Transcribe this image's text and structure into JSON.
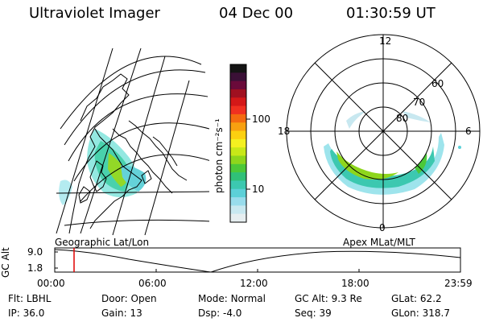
{
  "header": {
    "title": "Ultraviolet Imager",
    "date": "04 Dec 00",
    "time": "01:30:59 UT"
  },
  "colorbar": {
    "label": "photon cm⁻²s⁻¹",
    "ticks": [
      "100",
      "10"
    ],
    "colors": [
      "#141414",
      "#3a1036",
      "#6a0a3a",
      "#a01020",
      "#d41818",
      "#f03020",
      "#f46a10",
      "#f8a010",
      "#fcd010",
      "#f4f020",
      "#c8e818",
      "#8ed61c",
      "#4cc838",
      "#30c078",
      "#3cc8b0",
      "#5cd0d8",
      "#98dcec",
      "#c8e8f0",
      "#e6eef0"
    ]
  },
  "left_map": {
    "label": "Geographic Lat/Lon"
  },
  "polar_plot": {
    "label": "Apex MLat/MLT",
    "mlt_labels": {
      "top": "12",
      "left": "18",
      "right": "6",
      "bottom": "0"
    },
    "mlat_labels": [
      "60",
      "70",
      "80"
    ]
  },
  "altitude_plot": {
    "ylabel": "GC Alt",
    "yticks": [
      "9.0",
      "1.8"
    ],
    "xticks": [
      "00:00",
      "06:00",
      "12:00",
      "18:00",
      "23:59"
    ],
    "cursor_color": "#e00000"
  },
  "info": {
    "row1": [
      {
        "label": "Flt:",
        "value": "LBHL"
      },
      {
        "label": "Door:",
        "value": "Open"
      },
      {
        "label": "Mode:",
        "value": "Normal"
      },
      {
        "label": "GC Alt:",
        "value": "9.3 Re"
      },
      {
        "label": "GLat:",
        "value": "62.2"
      }
    ],
    "row2": [
      {
        "label": "IP:",
        "value": "36.0"
      },
      {
        "label": "Gain:",
        "value": "13"
      },
      {
        "label": "Dsp:",
        "value": "-4.0"
      },
      {
        "label": "Seq:",
        "value": "39"
      },
      {
        "label": "GLon:",
        "value": "318.7"
      }
    ]
  }
}
